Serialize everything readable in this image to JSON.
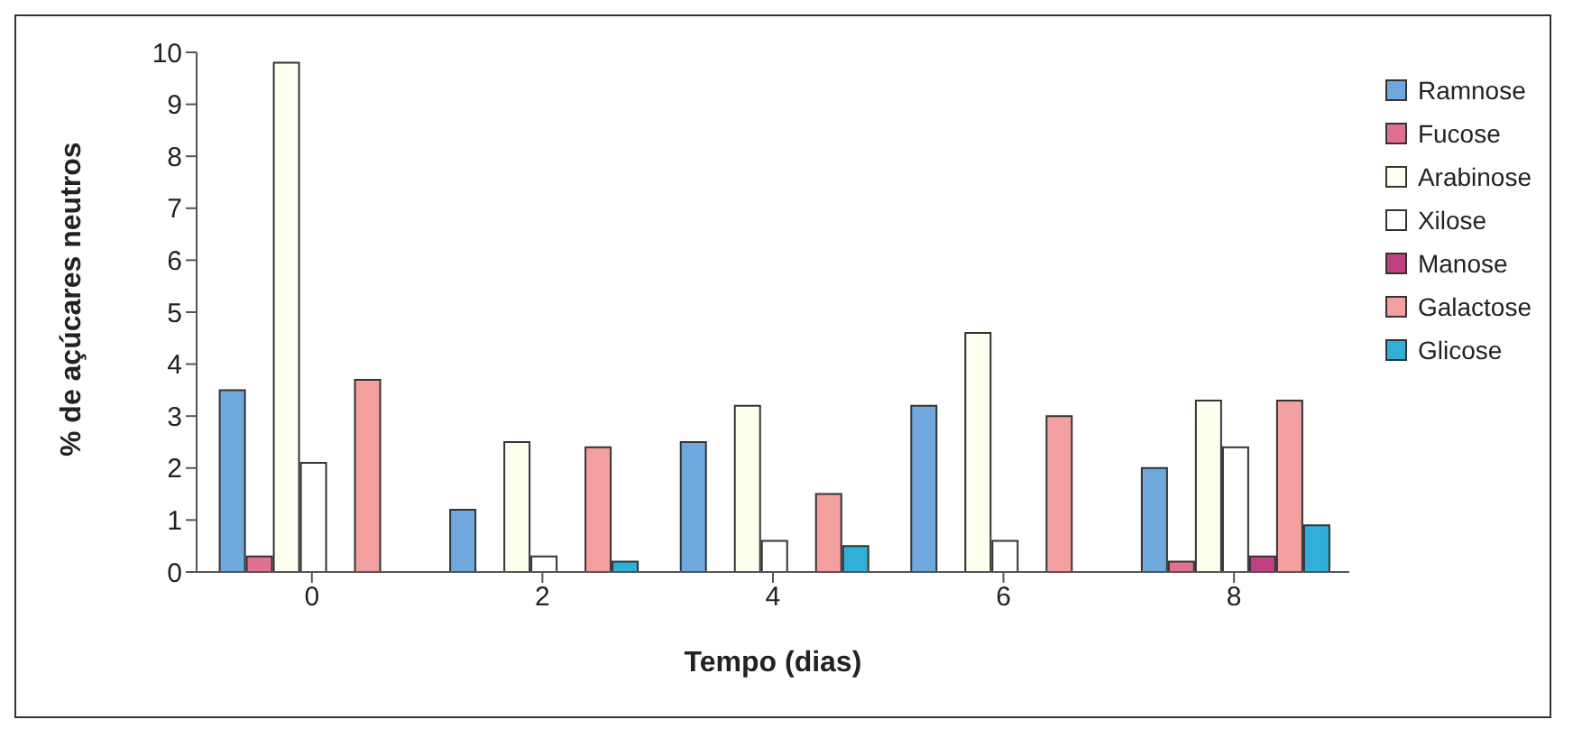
{
  "chart_data": {
    "type": "bar",
    "xlabel": "Tempo (dias)",
    "ylabel": "% de açúcares neutros",
    "categories": [
      "0",
      "2",
      "4",
      "6",
      "8"
    ],
    "ylim": [
      0,
      10
    ],
    "yticks": [
      0,
      1,
      2,
      3,
      4,
      5,
      6,
      7,
      8,
      9,
      10
    ],
    "grid": false,
    "legend": "right",
    "series": [
      {
        "name": "Ramnose",
        "color": "#6fa8dc",
        "values": [
          3.5,
          1.2,
          2.5,
          3.2,
          2.0
        ]
      },
      {
        "name": "Fucose",
        "color": "#e07090",
        "values": [
          0.3,
          0,
          0,
          0,
          0.2
        ]
      },
      {
        "name": "Arabinose",
        "color": "#fffff0",
        "values": [
          9.8,
          2.5,
          3.2,
          4.6,
          3.3
        ]
      },
      {
        "name": "Xilose",
        "color": "#ffffff",
        "values": [
          2.1,
          0.3,
          0.6,
          0.6,
          2.4
        ]
      },
      {
        "name": "Manose",
        "color": "#c04080",
        "values": [
          0,
          0,
          0,
          0,
          0.3
        ]
      },
      {
        "name": "Galactose",
        "color": "#f4a0a0",
        "values": [
          3.7,
          2.4,
          1.5,
          3.0,
          3.3
        ]
      },
      {
        "name": "Glicose",
        "color": "#30b0d8",
        "values": [
          0,
          0.2,
          0.5,
          0,
          0.9
        ]
      }
    ]
  }
}
